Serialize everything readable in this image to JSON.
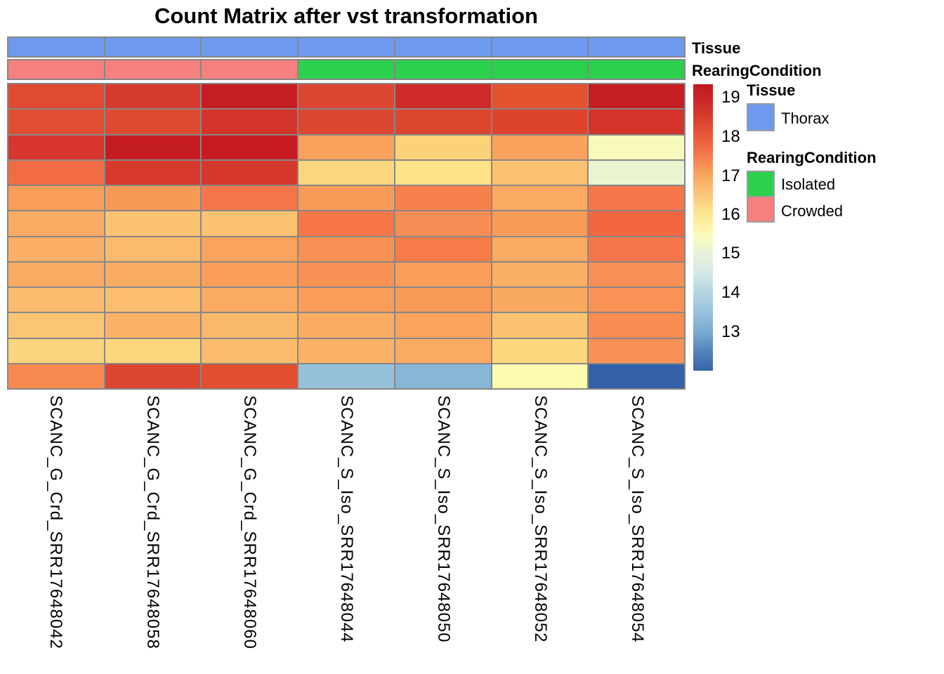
{
  "title": "Count Matrix after vst transformation",
  "annotation_rows": [
    {
      "id": "tissue",
      "label": "Tissue",
      "categories": [
        "Thorax",
        "Thorax",
        "Thorax",
        "Thorax",
        "Thorax",
        "Thorax",
        "Thorax"
      ]
    },
    {
      "id": "rearing",
      "label": "RearingCondition",
      "categories": [
        "Crowded",
        "Crowded",
        "Crowded",
        "Isolated",
        "Isolated",
        "Isolated",
        "Isolated"
      ]
    }
  ],
  "category_colors": {
    "Thorax": "#6D9AEE",
    "Isolated": "#2BD14D",
    "Crowded": "#F5807E"
  },
  "legend": {
    "tissue_title": "Tissue",
    "tissue_entries": [
      {
        "label": "Thorax",
        "color": "#6D9AEE"
      }
    ],
    "rearing_title": "RearingCondition",
    "rearing_entries": [
      {
        "label": "Isolated",
        "color": "#2BD14D"
      },
      {
        "label": "Crowded",
        "color": "#F5807E"
      }
    ]
  },
  "colorbar": {
    "ticks": [
      "19",
      "18",
      "17",
      "16",
      "15",
      "14",
      "13"
    ],
    "tick_offsets": [
      20,
      76,
      132,
      187,
      242,
      298,
      354
    ],
    "gradient": [
      [
        0,
        "#C3191F"
      ],
      [
        5,
        "#C9252A"
      ],
      [
        12,
        "#D8402D"
      ],
      [
        19,
        "#EA5D3C"
      ],
      [
        25,
        "#F47C4C"
      ],
      [
        32,
        "#FAA860"
      ],
      [
        39,
        "#FBC97C"
      ],
      [
        46,
        "#FCE992"
      ],
      [
        53,
        "#FBFBBB"
      ],
      [
        59,
        "#E8F2D8"
      ],
      [
        66,
        "#D4E8E8"
      ],
      [
        73,
        "#B3D4E4"
      ],
      [
        80,
        "#97C1DC"
      ],
      [
        87,
        "#77A8CF"
      ],
      [
        93,
        "#5584BC"
      ],
      [
        100,
        "#3A63A9"
      ]
    ]
  },
  "grid_color": "#878787",
  "chart_data": {
    "type": "heatmap",
    "title": "Count Matrix after vst transformation",
    "columns": [
      "SCANC_G_Crd_SRR17648042",
      "SCANC_G_Crd_SRR17648058",
      "SCANC_G_Crd_SRR17648060",
      "SCANC_S_Iso_SRR17648044",
      "SCANC_S_Iso_SRR17648050",
      "SCANC_S_Iso_SRR17648052",
      "SCANC_S_Iso_SRR17648054"
    ],
    "column_annotations": {
      "Tissue": [
        "Thorax",
        "Thorax",
        "Thorax",
        "Thorax",
        "Thorax",
        "Thorax",
        "Thorax"
      ],
      "RearingCondition": [
        "Crowded",
        "Crowded",
        "Crowded",
        "Isolated",
        "Isolated",
        "Isolated",
        "Isolated"
      ]
    },
    "n_rows": 12,
    "rownames_shown": false,
    "value_range": [
      12,
      19.4
    ],
    "colorbar_ticks": [
      19,
      18,
      17,
      16,
      15,
      14,
      13
    ],
    "values": [
      [
        18.6,
        18.8,
        19.1,
        18.6,
        18.9,
        18.4,
        19.1
      ],
      [
        18.5,
        18.6,
        18.8,
        18.6,
        18.6,
        18.6,
        18.8
      ],
      [
        18.8,
        19.2,
        19.2,
        17.4,
        16.5,
        17.4,
        15.6
      ],
      [
        18.0,
        18.7,
        18.7,
        16.4,
        16.2,
        16.8,
        15.1
      ],
      [
        17.5,
        17.5,
        17.9,
        17.5,
        17.8,
        17.2,
        17.9
      ],
      [
        17.2,
        16.8,
        16.8,
        17.9,
        17.6,
        17.5,
        18.0
      ],
      [
        17.2,
        17.0,
        17.4,
        17.6,
        17.8,
        17.2,
        17.9
      ],
      [
        17.2,
        17.2,
        17.4,
        17.6,
        17.4,
        17.2,
        17.6
      ],
      [
        17.0,
        17.0,
        17.2,
        17.5,
        17.5,
        17.2,
        17.6
      ],
      [
        16.8,
        17.1,
        17.0,
        17.2,
        17.4,
        16.8,
        17.7
      ],
      [
        16.5,
        16.5,
        17.0,
        17.1,
        17.2,
        16.5,
        17.6
      ],
      [
        17.7,
        18.6,
        18.5,
        13.9,
        13.7,
        15.8,
        12.5
      ]
    ],
    "cell_colors": [
      [
        "#DF4A31",
        "#D53A2C",
        "#C61D22",
        "#DC4631",
        "#D02A29",
        "#E2522F",
        "#C61D23"
      ],
      [
        "#E04E32",
        "#DD4A30",
        "#D2342B",
        "#DC4731",
        "#DC462F",
        "#DD432D",
        "#D2342B"
      ],
      [
        "#D8352E",
        "#C41B20",
        "#C41A20",
        "#F9A25E",
        "#FCD279",
        "#F9A25D",
        "#F8FABC"
      ],
      [
        "#F26C43",
        "#D73A2C",
        "#D5372C",
        "#FAD77F",
        "#FDE289",
        "#FBC172",
        "#E9F5D0"
      ],
      [
        "#F99D5A",
        "#F99956",
        "#F4764A",
        "#F99B58",
        "#F7814D",
        "#FAAA63",
        "#F5764A"
      ],
      [
        "#FAAC64",
        "#FBC272",
        "#FBC272",
        "#F6764A",
        "#F88E55",
        "#F99C58",
        "#F26742"
      ],
      [
        "#FAAE66",
        "#FBBA6C",
        "#F9A35C",
        "#F89153",
        "#F77C49",
        "#FAAC64",
        "#F5764A"
      ],
      [
        "#FAAB63",
        "#FAAD62",
        "#F99F5B",
        "#F89254",
        "#F99E5B",
        "#FAAF66",
        "#F88F54"
      ],
      [
        "#FBBC6F",
        "#FBBD6E",
        "#FAAA62",
        "#F99D5A",
        "#F99B58",
        "#FAA960",
        "#F89355"
      ],
      [
        "#FBC674",
        "#FAB166",
        "#FBB96C",
        "#FAAC64",
        "#F9A35F",
        "#FBC371",
        "#F88C51"
      ],
      [
        "#FCD47D",
        "#FCD67D",
        "#FBBC6E",
        "#FAB269",
        "#FAAA63",
        "#FCD77E",
        "#F89155"
      ],
      [
        "#F88A50",
        "#DC4530",
        "#E0502F",
        "#95C1DB",
        "#87B7D7",
        "#FDFCAE",
        "#3261A8"
      ]
    ],
    "legend_position": "right",
    "grid": true
  }
}
